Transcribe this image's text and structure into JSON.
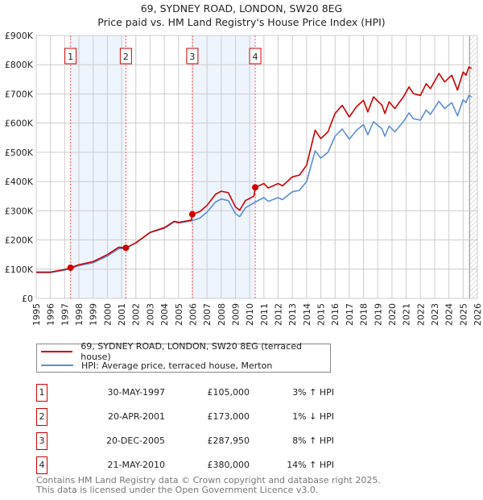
{
  "chart_data": {
    "type": "line",
    "title": "69, SYDNEY ROAD, LONDON, SW20 8EG",
    "subtitle": "Price paid vs. HM Land Registry's House Price Index (HPI)",
    "xlim": [
      1995,
      2026
    ],
    "ylim": [
      0,
      900000
    ],
    "x_ticks": [
      "1995",
      "1996",
      "1997",
      "1998",
      "1999",
      "2000",
      "2001",
      "2002",
      "2003",
      "2004",
      "2005",
      "2006",
      "2007",
      "2008",
      "2009",
      "2010",
      "2011",
      "2012",
      "2013",
      "2014",
      "2015",
      "2016",
      "2017",
      "2018",
      "2019",
      "2020",
      "2021",
      "2022",
      "2023",
      "2024",
      "2025",
      "2026"
    ],
    "y_ticks": [
      {
        "v": 0,
        "label": "£0"
      },
      {
        "v": 100000,
        "label": "£100K"
      },
      {
        "v": 200000,
        "label": "£200K"
      },
      {
        "v": 300000,
        "label": "£300K"
      },
      {
        "v": 400000,
        "label": "£400K"
      },
      {
        "v": 500000,
        "label": "£500K"
      },
      {
        "v": 600000,
        "label": "£600K"
      },
      {
        "v": 700000,
        "label": "£700K"
      },
      {
        "v": 800000,
        "label": "£800K"
      },
      {
        "v": 900000,
        "label": "£900K"
      }
    ],
    "grid": true,
    "forecast_hatch_from": 2025.45,
    "series": [
      {
        "name": "69, SYDNEY ROAD, LONDON, SW20 8EG (terraced house)",
        "color": "#cc0000",
        "points": [
          [
            1995,
            90
          ],
          [
            1996,
            90
          ],
          [
            1997,
            99
          ],
          [
            1997.41,
            105
          ],
          [
            1998,
            115
          ],
          [
            1999,
            126
          ],
          [
            2000,
            150
          ],
          [
            2000.8,
            175
          ],
          [
            2001.3,
            173
          ],
          [
            2002,
            190
          ],
          [
            2003,
            226
          ],
          [
            2004,
            242
          ],
          [
            2004.7,
            264
          ],
          [
            2005,
            260
          ],
          [
            2005.9,
            268
          ],
          [
            2005.97,
            288
          ],
          [
            2006.5,
            297
          ],
          [
            2007,
            318
          ],
          [
            2007.6,
            356
          ],
          [
            2008,
            367
          ],
          [
            2008.5,
            362
          ],
          [
            2009,
            313
          ],
          [
            2009.3,
            302
          ],
          [
            2009.7,
            335
          ],
          [
            2010.3,
            350
          ],
          [
            2010.39,
            380
          ],
          [
            2011,
            393
          ],
          [
            2011.3,
            378
          ],
          [
            2012,
            393
          ],
          [
            2012.3,
            385
          ],
          [
            2013,
            416
          ],
          [
            2013.5,
            422
          ],
          [
            2014,
            456
          ],
          [
            2014.6,
            576
          ],
          [
            2015,
            547
          ],
          [
            2015.5,
            570
          ],
          [
            2016,
            633
          ],
          [
            2016.5,
            661
          ],
          [
            2017,
            621
          ],
          [
            2017.5,
            656
          ],
          [
            2018,
            678
          ],
          [
            2018.3,
            638
          ],
          [
            2018.7,
            690
          ],
          [
            2019.3,
            661
          ],
          [
            2019.5,
            633
          ],
          [
            2019.8,
            673
          ],
          [
            2020.2,
            650
          ],
          [
            2020.8,
            690
          ],
          [
            2021.2,
            724
          ],
          [
            2021.5,
            701
          ],
          [
            2022,
            695
          ],
          [
            2022.4,
            735
          ],
          [
            2022.7,
            718
          ],
          [
            2023.3,
            770
          ],
          [
            2023.7,
            741
          ],
          [
            2024.2,
            764
          ],
          [
            2024.6,
            713
          ],
          [
            2025,
            775
          ],
          [
            2025.2,
            764
          ],
          [
            2025.4,
            792
          ],
          [
            2025.6,
            787
          ]
        ]
      },
      {
        "name": "HPI: Average price, terraced house, Merton",
        "color": "#5b8ed6",
        "points": [
          [
            1995,
            88
          ],
          [
            1996,
            88
          ],
          [
            1997,
            97
          ],
          [
            1997.4,
            102
          ],
          [
            1998,
            112
          ],
          [
            1999,
            122
          ],
          [
            2000,
            145
          ],
          [
            2000.8,
            170
          ],
          [
            2001.3,
            172
          ],
          [
            2002,
            190
          ],
          [
            2003,
            225
          ],
          [
            2004,
            240
          ],
          [
            2004.7,
            262
          ],
          [
            2005,
            258
          ],
          [
            2005.9,
            265
          ],
          [
            2006.5,
            275
          ],
          [
            2007,
            295
          ],
          [
            2007.6,
            330
          ],
          [
            2008,
            340
          ],
          [
            2008.5,
            335
          ],
          [
            2009,
            290
          ],
          [
            2009.3,
            280
          ],
          [
            2009.7,
            310
          ],
          [
            2010.4,
            330
          ],
          [
            2011,
            345
          ],
          [
            2011.3,
            332
          ],
          [
            2012,
            345
          ],
          [
            2012.3,
            338
          ],
          [
            2013,
            365
          ],
          [
            2013.5,
            370
          ],
          [
            2014,
            400
          ],
          [
            2014.6,
            505
          ],
          [
            2015,
            480
          ],
          [
            2015.5,
            500
          ],
          [
            2016,
            555
          ],
          [
            2016.5,
            580
          ],
          [
            2017,
            545
          ],
          [
            2017.5,
            575
          ],
          [
            2018,
            595
          ],
          [
            2018.3,
            560
          ],
          [
            2018.7,
            605
          ],
          [
            2019.3,
            580
          ],
          [
            2019.5,
            555
          ],
          [
            2019.8,
            590
          ],
          [
            2020.2,
            570
          ],
          [
            2020.8,
            605
          ],
          [
            2021.2,
            635
          ],
          [
            2021.5,
            615
          ],
          [
            2022,
            610
          ],
          [
            2022.4,
            645
          ],
          [
            2022.7,
            630
          ],
          [
            2023.3,
            675
          ],
          [
            2023.7,
            650
          ],
          [
            2024.2,
            670
          ],
          [
            2024.6,
            625
          ],
          [
            2025,
            680
          ],
          [
            2025.2,
            670
          ],
          [
            2025.4,
            695
          ],
          [
            2025.6,
            690
          ]
        ]
      }
    ],
    "series_units": "thousands GBP",
    "sales": [
      {
        "id": "1",
        "x": 1997.41,
        "value": 105000,
        "date": "30-MAY-1997",
        "price": "£105,000",
        "hpi": "3% ↑ HPI"
      },
      {
        "id": "2",
        "x": 2001.3,
        "value": 173000,
        "date": "20-APR-2001",
        "price": "£173,000",
        "hpi": "1% ↓ HPI"
      },
      {
        "id": "3",
        "x": 2005.97,
        "value": 287950,
        "date": "20-DEC-2005",
        "price": "£287,950",
        "hpi": "8% ↑ HPI"
      },
      {
        "id": "4",
        "x": 2010.39,
        "value": 380000,
        "date": "21-MAY-2010",
        "price": "£380,000",
        "hpi": "14% ↑ HPI"
      }
    ],
    "legend_position": "bottom"
  },
  "footer": {
    "line1": "Contains HM Land Registry data © Crown copyright and database right 2025.",
    "line2": "This data is licensed under the Open Government Licence v3.0."
  }
}
